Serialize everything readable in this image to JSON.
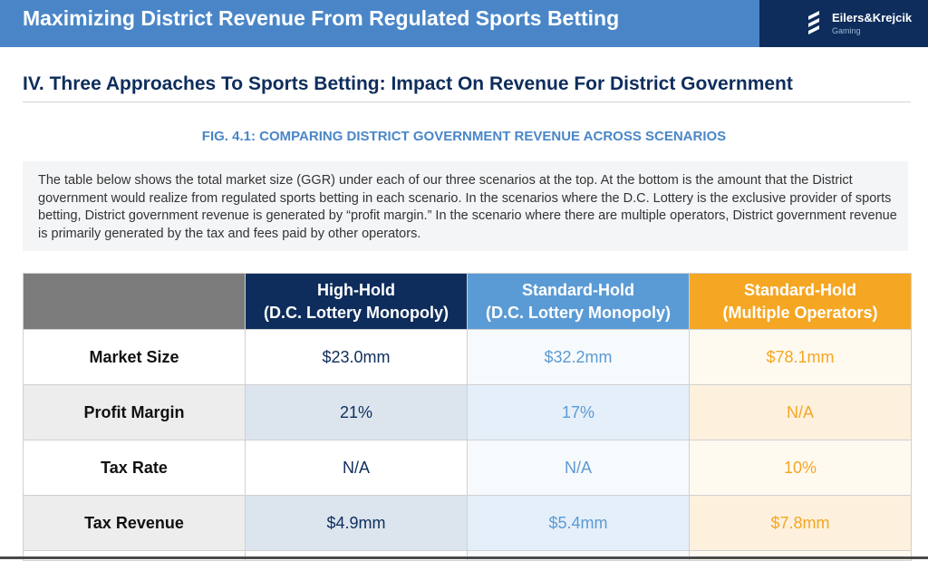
{
  "header": {
    "title": "Maximizing District Revenue From Regulated Sports Betting",
    "logo_name": "Eilers&Krejcik",
    "logo_sub": "Gaming"
  },
  "section_title": "IV. Three Approaches To Sports Betting: Impact On Revenue For District Government",
  "figure_title": "FIG. 4.1: COMPARING DISTRICT GOVERNMENT REVENUE ACROSS SCENARIOS",
  "description": "The table below shows the total market size (GGR) under each of our three scenarios at the top. At the bottom is the amount that the District government would realize from regulated sports betting in each scenario. In the scenarios where the D.C. Lottery is the exclusive provider of sports betting, District government revenue is generated by “profit margin.” In the scenario where there are multiple operators, District government revenue is primarily generated by the tax and fees paid by other operators.",
  "table": {
    "columns": [
      {
        "line1": "High-Hold",
        "line2": "(D.C. Lottery Monopoly)"
      },
      {
        "line1": "Standard-Hold",
        "line2": "(D.C. Lottery Monopoly)"
      },
      {
        "line1": "Standard-Hold",
        "line2": "(Multiple Operators)"
      }
    ],
    "rows": [
      {
        "label": "Market Size",
        "values": [
          "$23.0mm",
          "$32.2mm",
          "$78.1mm"
        ]
      },
      {
        "label": "Profit Margin",
        "values": [
          "21%",
          "17%",
          "N/A"
        ]
      },
      {
        "label": "Tax Rate",
        "values": [
          "N/A",
          "N/A",
          "10%"
        ]
      },
      {
        "label": "Tax Revenue",
        "values": [
          "$4.9mm",
          "$5.4mm",
          "$7.8mm"
        ]
      }
    ]
  },
  "colors": {
    "header_blue": "#4a86c7",
    "navy": "#0e2d5c",
    "light_blue": "#5b9bd5",
    "orange": "#f5a623",
    "corner_gray": "#7b7b7b"
  }
}
